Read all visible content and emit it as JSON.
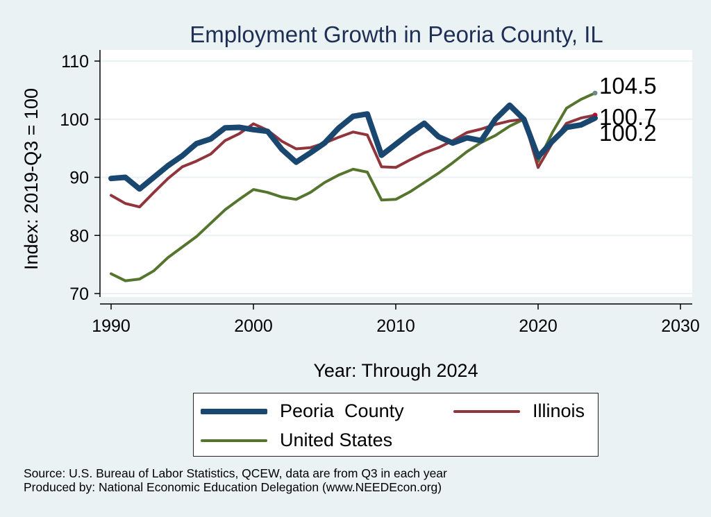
{
  "chart_data": {
    "type": "line",
    "title": "Employment Growth in Peoria County, IL",
    "xlabel": "Year: Through 2024",
    "ylabel": "Index: 2019-Q3 = 100",
    "xlim": [
      1990,
      2030
    ],
    "ylim": [
      69,
      111
    ],
    "x_ticks": [
      1990,
      2000,
      2010,
      2020,
      2030
    ],
    "y_ticks": [
      70,
      80,
      90,
      100,
      110
    ],
    "grid": true,
    "legend_position": "bottom",
    "x": [
      1990,
      1991,
      1992,
      1993,
      1994,
      1995,
      1996,
      1997,
      1998,
      1999,
      2000,
      2001,
      2002,
      2003,
      2004,
      2005,
      2006,
      2007,
      2008,
      2009,
      2010,
      2011,
      2012,
      2013,
      2014,
      2015,
      2016,
      2017,
      2018,
      2019,
      2020,
      2021,
      2022,
      2023,
      2024
    ],
    "series": [
      {
        "name": "Peoria  County",
        "color": "#1A476F",
        "width": 8,
        "values": [
          89.8,
          90.0,
          88.0,
          90.0,
          92.0,
          93.7,
          95.8,
          96.6,
          98.5,
          98.6,
          98.2,
          97.9,
          94.8,
          92.6,
          94.2,
          95.9,
          98.5,
          100.5,
          100.9,
          93.8,
          95.7,
          97.6,
          99.3,
          97.0,
          95.9,
          96.8,
          96.3,
          100.0,
          102.4,
          100.0,
          93.5,
          96.2,
          98.6,
          99.0,
          100.2
        ]
      },
      {
        "name": "Illinois",
        "color": "#90353B",
        "width": 4,
        "values": [
          86.9,
          85.5,
          84.9,
          87.4,
          89.8,
          91.8,
          92.8,
          94.0,
          96.3,
          97.5,
          99.2,
          98.1,
          96.2,
          94.9,
          95.1,
          95.9,
          96.9,
          97.8,
          97.3,
          91.8,
          91.7,
          93.0,
          94.2,
          95.1,
          96.3,
          97.7,
          98.3,
          99.1,
          99.7,
          100.0,
          91.7,
          95.9,
          99.3,
          100.2,
          100.7
        ]
      },
      {
        "name": "United States",
        "color": "#55752F",
        "width": 4,
        "values": [
          73.4,
          72.2,
          72.5,
          73.9,
          76.2,
          78.0,
          79.8,
          82.1,
          84.4,
          86.2,
          87.9,
          87.4,
          86.6,
          86.2,
          87.4,
          89.1,
          90.4,
          91.4,
          90.9,
          86.1,
          86.2,
          87.5,
          89.1,
          90.7,
          92.5,
          94.4,
          96.0,
          97.2,
          98.8,
          100.0,
          92.7,
          97.7,
          101.9,
          103.4,
          104.5
        ]
      }
    ],
    "end_labels": [
      {
        "series": "United States",
        "text": "104.5",
        "dot_color": "#6B8C86"
      },
      {
        "series": "Illinois",
        "text": "100.7",
        "dot_color": "#C10534"
      },
      {
        "series": "Peoria  County",
        "text": "100.2",
        "dot_color": "#1A476F"
      }
    ]
  },
  "legend": {
    "items": [
      {
        "label": "Peoria  County",
        "color": "#1A476F",
        "thickness": 8
      },
      {
        "label": "Illinois",
        "color": "#90353B",
        "thickness": 4
      },
      {
        "label": "United States",
        "color": "#55752F",
        "thickness": 4
      }
    ]
  },
  "source": {
    "line1": "Source: U.S. Bureau of Labor Statistics, QCEW, data are from Q3 in each year",
    "line2": "Produced by: National Economic Education Delegation (www.NEEDEcon.org)"
  }
}
